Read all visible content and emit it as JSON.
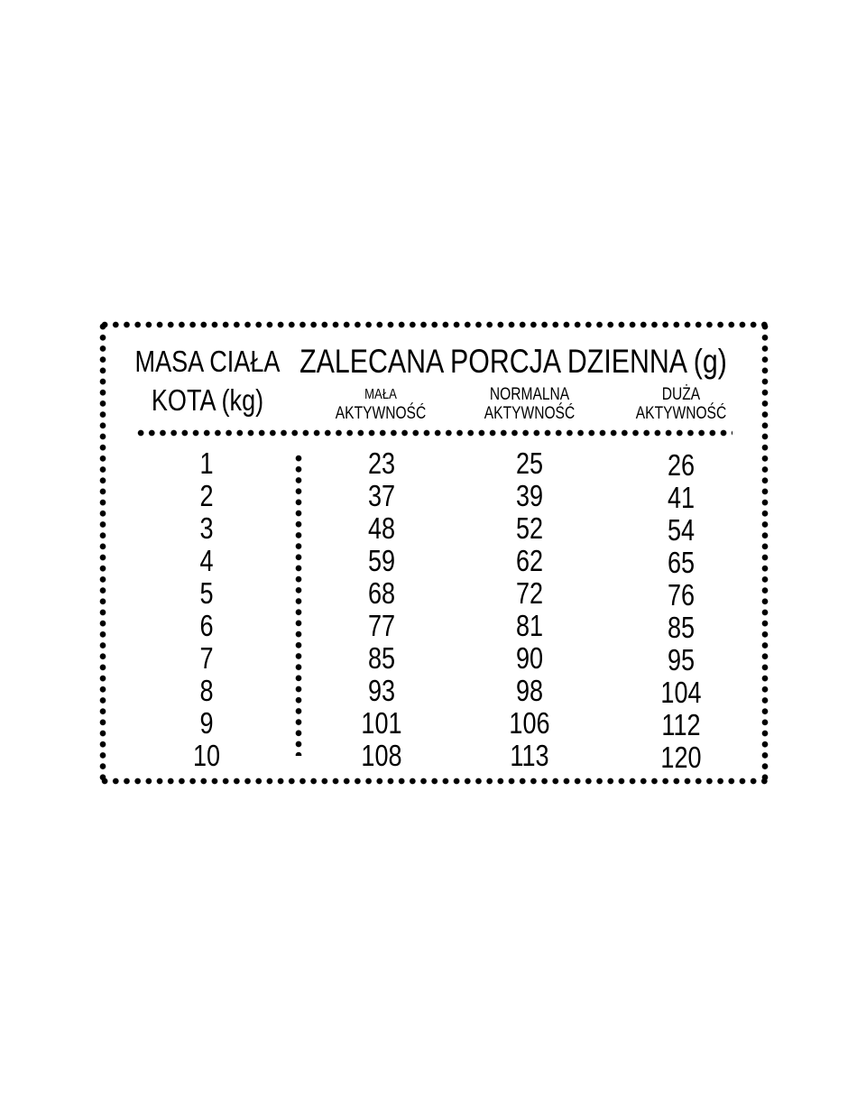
{
  "table": {
    "col0_header_line1": "MASA CIAŁA",
    "col0_header_line2": "KOTA (kg)",
    "group_header": "ZALECANA PORCJA DZIENNA (g)",
    "sub_headers": [
      {
        "line1": "MAŁA",
        "line2": "AKTYWNOŚĆ"
      },
      {
        "line1": "NORMALNA",
        "line2": "AKTYWNOŚĆ"
      },
      {
        "line1": "DUŻA",
        "line2": "AKTYWNOŚĆ"
      }
    ],
    "rows": [
      [
        "1",
        "23",
        "25",
        "26"
      ],
      [
        "2",
        "37",
        "39",
        "41"
      ],
      [
        "3",
        "48",
        "52",
        "54"
      ],
      [
        "4",
        "59",
        "62",
        "65"
      ],
      [
        "5",
        "68",
        "72",
        "76"
      ],
      [
        "6",
        "77",
        "81",
        "85"
      ],
      [
        "7",
        "85",
        "90",
        "95"
      ],
      [
        "8",
        "93",
        "98",
        "104"
      ],
      [
        "9",
        "101",
        "106",
        "112"
      ],
      [
        "10",
        "108",
        "113",
        "120"
      ]
    ]
  }
}
